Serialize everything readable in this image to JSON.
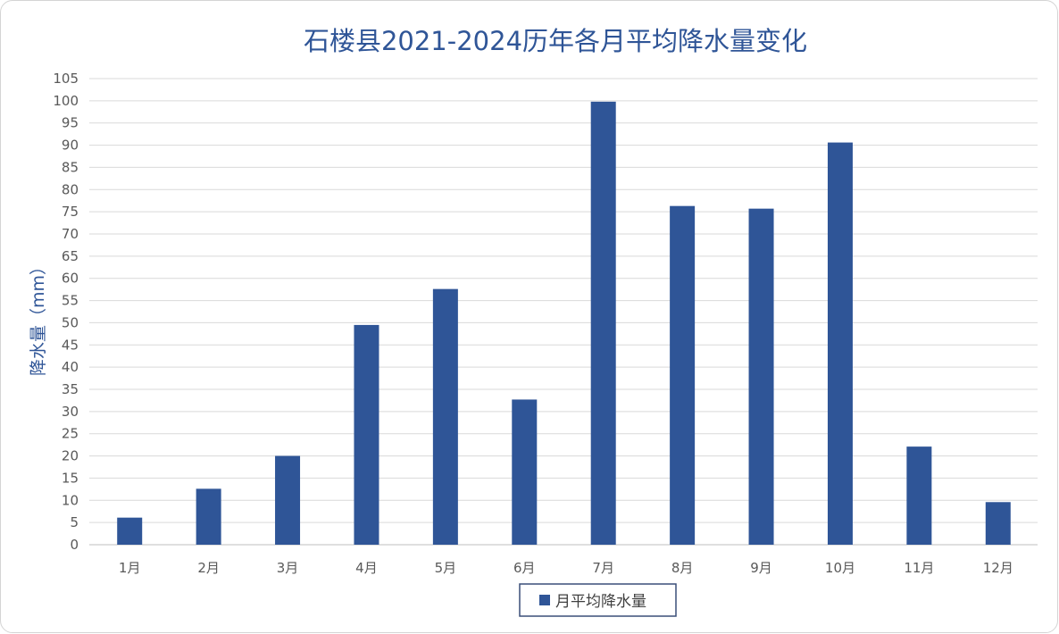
{
  "chart_data": {
    "type": "bar",
    "title": "石楼县2021-2024历年各月平均降水量变化",
    "xlabel": "",
    "ylabel": "降水量（mm）",
    "categories": [
      "1月",
      "2月",
      "3月",
      "4月",
      "5月",
      "6月",
      "7月",
      "8月",
      "9月",
      "10月",
      "11月",
      "12月"
    ],
    "series": [
      {
        "name": "月平均降水量",
        "values": [
          6.1,
          12.6,
          20.0,
          49.5,
          57.6,
          32.7,
          99.8,
          76.3,
          75.7,
          90.6,
          22.1,
          9.6
        ],
        "color": "#2F5597"
      }
    ],
    "ylim": [
      0,
      105
    ],
    "yticks": [
      0,
      5,
      10,
      15,
      20,
      25,
      30,
      35,
      40,
      45,
      50,
      55,
      60,
      65,
      70,
      75,
      80,
      85,
      90,
      95,
      100,
      105
    ],
    "grid": true,
    "legend": "bottom-center"
  },
  "colors": {
    "title": "#2F5597",
    "axis_label": "#2F5597",
    "tick_label": "#595959",
    "gridline": "#D9D9D9"
  }
}
